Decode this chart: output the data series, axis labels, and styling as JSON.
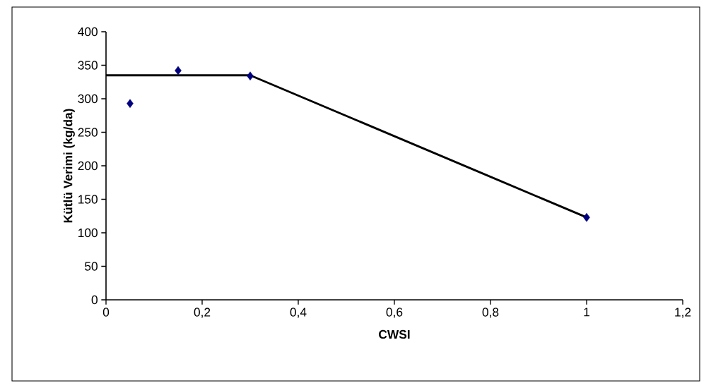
{
  "chart_data": {
    "type": "scatter",
    "xlabel": "CWSI",
    "ylabel": "Kütlü Verimi (kg/da)",
    "xlim": [
      0,
      1.2
    ],
    "xticks": [
      {
        "value": 0,
        "label": "0"
      },
      {
        "value": 0.2,
        "label": "0,2"
      },
      {
        "value": 0.4,
        "label": "0,4"
      },
      {
        "value": 0.6,
        "label": "0,6"
      },
      {
        "value": 0.8,
        "label": "0,8"
      },
      {
        "value": 1,
        "label": "1"
      },
      {
        "value": 1.2,
        "label": "1,2"
      }
    ],
    "ylim": [
      0,
      400
    ],
    "yticks": [
      0,
      50,
      100,
      150,
      200,
      250,
      300,
      350,
      400
    ],
    "series": [
      {
        "marker": "diamond",
        "color": "#000080",
        "x": [
          0.05,
          0.15,
          0.3,
          1
        ],
        "values": [
          293,
          342,
          334,
          123
        ]
      },
      {
        "type": "line",
        "marker": "none",
        "line_style": "solid",
        "color": "#000000",
        "x": [
          0,
          0.3,
          1
        ],
        "values": [
          335,
          335,
          123
        ]
      }
    ]
  }
}
